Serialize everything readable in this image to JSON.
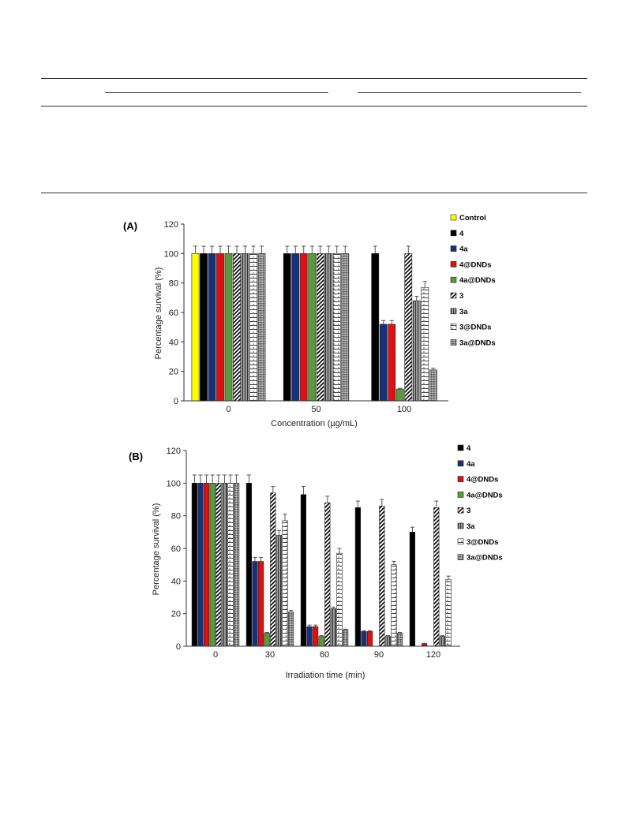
{
  "colors": {
    "control": "#ffff00",
    "compound_4": "#000000",
    "compound_4a": "#1a2f7a",
    "compound_4_dnds": "#dd1111",
    "compound_4a_dnds": "#5a9a3a",
    "axis": "#333333"
  },
  "chart_data": [
    {
      "type": "bar",
      "panel_label": "(A)",
      "xlabel": "Concentration (µg/mL)",
      "ylabel": "Percentage survival (%)",
      "ylim": [
        0,
        120
      ],
      "yticks": [
        0,
        20,
        40,
        60,
        80,
        100,
        120
      ],
      "categories": [
        "0",
        "50",
        "100"
      ],
      "grid": false,
      "legend_position": "right",
      "series": [
        {
          "name": "Control",
          "pattern": "control",
          "values": [
            100,
            null,
            null
          ],
          "errors": [
            5,
            null,
            null
          ]
        },
        {
          "name": "4",
          "pattern": "solid-black",
          "values": [
            100,
            100,
            100
          ],
          "errors": [
            5,
            5,
            5
          ]
        },
        {
          "name": "4a",
          "pattern": "solid-blue",
          "values": [
            100,
            100,
            52
          ],
          "errors": [
            5,
            5,
            2.5
          ]
        },
        {
          "name": "4@DNDs",
          "pattern": "solid-red",
          "values": [
            100,
            100,
            52
          ],
          "errors": [
            5,
            5,
            2.5
          ]
        },
        {
          "name": "4a@DNDs",
          "pattern": "solid-green",
          "values": [
            100,
            100,
            8
          ],
          "errors": [
            5,
            5,
            0.5
          ]
        },
        {
          "name": "3",
          "pattern": "diagonal",
          "values": [
            100,
            100,
            100
          ],
          "errors": [
            5,
            5,
            5
          ]
        },
        {
          "name": "3a",
          "pattern": "vertical",
          "values": [
            100,
            100,
            68
          ],
          "errors": [
            5,
            5,
            3
          ]
        },
        {
          "name": "3@DNDs",
          "pattern": "brick",
          "values": [
            100,
            100,
            77
          ],
          "errors": [
            5,
            5,
            4
          ]
        },
        {
          "name": "3a@DNDs",
          "pattern": "dots",
          "values": [
            100,
            100,
            21
          ],
          "errors": [
            5,
            5,
            1.2
          ]
        }
      ]
    },
    {
      "type": "bar",
      "panel_label": "(B)",
      "xlabel": "Irradiation time (min)",
      "ylabel": "Percentage survival (%)",
      "ylim": [
        0,
        120
      ],
      "yticks": [
        0,
        20,
        40,
        60,
        80,
        100,
        120
      ],
      "categories": [
        "0",
        "30",
        "60",
        "90",
        "120"
      ],
      "grid": false,
      "legend_position": "right",
      "series": [
        {
          "name": "4",
          "pattern": "solid-black",
          "values": [
            100,
            100,
            93,
            85,
            70
          ],
          "errors": [
            5,
            5,
            5,
            4,
            3
          ]
        },
        {
          "name": "4a",
          "pattern": "solid-blue",
          "values": [
            100,
            52,
            12,
            9,
            0
          ],
          "errors": [
            5,
            2.5,
            1,
            0.5,
            0
          ]
        },
        {
          "name": "4@DNDs",
          "pattern": "solid-red",
          "values": [
            100,
            52,
            12,
            9,
            1.5
          ],
          "errors": [
            5,
            2.5,
            1,
            0.5,
            0.3
          ]
        },
        {
          "name": "4a@DNDs",
          "pattern": "solid-green",
          "values": [
            100,
            8,
            6,
            0,
            0
          ],
          "errors": [
            5,
            0.5,
            0.5,
            0,
            0
          ]
        },
        {
          "name": "3",
          "pattern": "diagonal",
          "values": [
            100,
            94,
            88,
            86,
            85
          ],
          "errors": [
            5,
            4,
            4,
            4,
            4
          ]
        },
        {
          "name": "3a",
          "pattern": "vertical",
          "values": [
            100,
            68,
            23,
            6,
            6
          ],
          "errors": [
            5,
            3,
            1,
            0.5,
            0.5
          ]
        },
        {
          "name": "3@DNDs",
          "pattern": "brick",
          "values": [
            100,
            77,
            57,
            50,
            41
          ],
          "errors": [
            5,
            4,
            3,
            2,
            2
          ]
        },
        {
          "name": "3a@DNDs",
          "pattern": "dots",
          "values": [
            100,
            21,
            10,
            8,
            0
          ],
          "errors": [
            5,
            1,
            0.5,
            0.5,
            0
          ]
        }
      ]
    }
  ]
}
